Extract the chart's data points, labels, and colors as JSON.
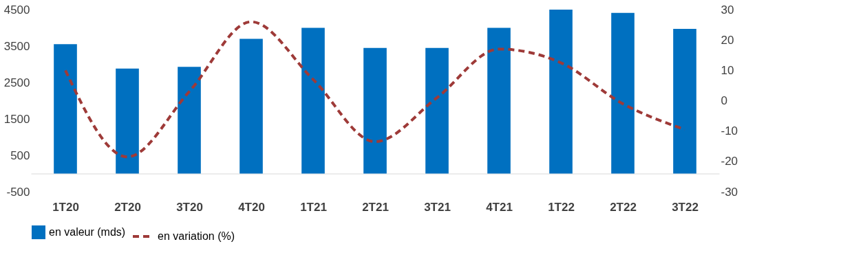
{
  "chart_data": {
    "type": "bar",
    "categories": [
      "1T20",
      "2T20",
      "3T20",
      "4T20",
      "1T21",
      "2T21",
      "3T21",
      "4T21",
      "1T22",
      "2T22",
      "3T22"
    ],
    "series": [
      {
        "name": "en valeur (mds)",
        "color": "#0070c0",
        "values": [
          3550,
          2880,
          2930,
          3700,
          4000,
          3450,
          3450,
          4000,
          4500,
          4410,
          3970
        ]
      },
      {
        "name": "en variation (%)",
        "type": "line",
        "axis": "y2",
        "color": "#9e3a38",
        "line_style": "dashed",
        "marker": "none",
        "values": [
          10,
          -18.5,
          3,
          26,
          7,
          -13.5,
          1,
          17,
          12.5,
          -1,
          -9.5
        ]
      }
    ],
    "ylim": [
      -500,
      4500
    ],
    "yticks": [
      -500,
      500,
      1500,
      2500,
      3500,
      4500
    ],
    "y2lim": [
      -30,
      30
    ],
    "y2ticks": [
      -30,
      -20,
      -10,
      0,
      10,
      20,
      30
    ],
    "grid": false,
    "legend": "bottom"
  }
}
